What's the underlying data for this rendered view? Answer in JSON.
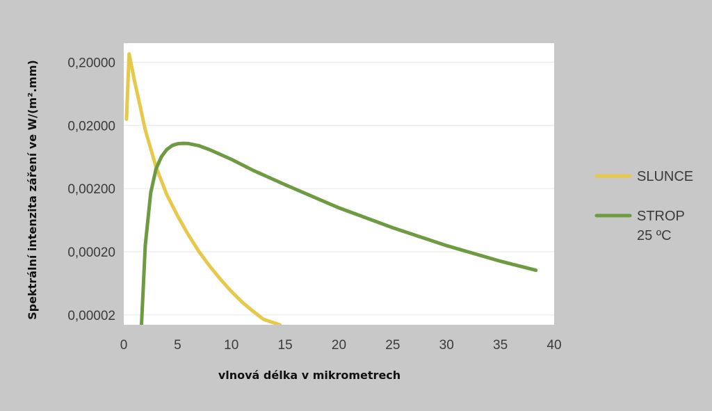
{
  "chart_data": {
    "type": "line",
    "xlabel": "vlnová délka v mikrometrech",
    "ylabel": "Spektrální intenzita záření ve W/(m².mm)",
    "xlim": [
      0,
      40
    ],
    "ylim": [
      1.4e-05,
      0.4
    ],
    "yscale": "log",
    "grid": "horizontal",
    "legend_position": "right",
    "x_ticks": [
      0,
      5,
      10,
      15,
      20,
      25,
      30,
      35,
      40
    ],
    "x_tick_labels": [
      "0",
      "5",
      "10",
      "15",
      "20",
      "25",
      "30",
      "35",
      "40"
    ],
    "y_ticks": [
      2e-05,
      0.0002,
      0.002,
      0.02,
      0.2
    ],
    "y_tick_labels": [
      "0,00002",
      "0,00020",
      "0,00200",
      "0,02000",
      "0,20000"
    ],
    "series": [
      {
        "name": "SLUNCE",
        "color": "#e6c94a",
        "points": [
          [
            0.25,
            0.025
          ],
          [
            0.5,
            0.27
          ],
          [
            0.8,
            0.15
          ],
          [
            1,
            0.1
          ],
          [
            1.5,
            0.042
          ],
          [
            2,
            0.017
          ],
          [
            3,
            0.0044
          ],
          [
            4,
            0.0016
          ],
          [
            5,
            0.00074
          ],
          [
            6,
            0.00037
          ],
          [
            7,
            0.0002
          ],
          [
            8,
            0.000118
          ],
          [
            9,
            7.3e-05
          ],
          [
            10,
            4.7e-05
          ],
          [
            11,
            3.2e-05
          ],
          [
            12,
            2.3e-05
          ],
          [
            13,
            1.7e-05
          ],
          [
            14.5,
            1.4e-05
          ]
        ]
      },
      {
        "name": "STROP",
        "name_line2": "25 ºC",
        "color": "#6e9a41",
        "points": [
          [
            1.65,
            1.4e-05
          ],
          [
            1.8,
            5e-05
          ],
          [
            2,
            0.00025
          ],
          [
            2.5,
            0.0017
          ],
          [
            3,
            0.0041
          ],
          [
            3.5,
            0.0064
          ],
          [
            4,
            0.0083
          ],
          [
            4.5,
            0.0096
          ],
          [
            5,
            0.0102
          ],
          [
            5.5,
            0.0104
          ],
          [
            6,
            0.0103
          ],
          [
            7,
            0.0095
          ],
          [
            8,
            0.0082
          ],
          [
            10,
            0.0058
          ],
          [
            12,
            0.0039
          ],
          [
            15,
            0.0023
          ],
          [
            20,
            0.00099
          ],
          [
            25,
            0.00048
          ],
          [
            30,
            0.00025
          ],
          [
            35,
            0.000142
          ],
          [
            38.3,
            0.000102
          ]
        ]
      }
    ]
  }
}
